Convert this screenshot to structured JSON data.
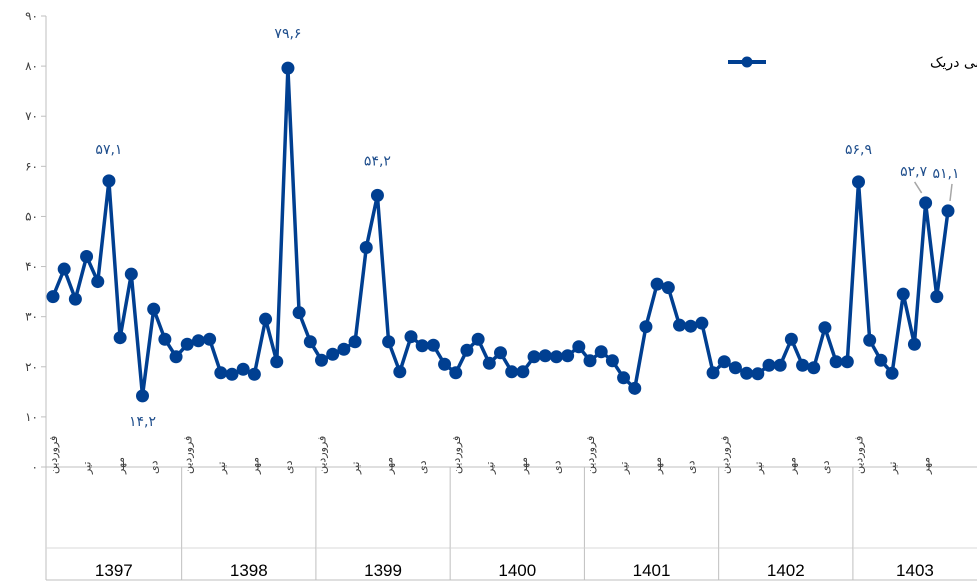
{
  "chart_data": {
    "type": "line",
    "ylim": [
      0,
      90
    ],
    "y_ticks": [
      "۰",
      "۱۰",
      "۲۰",
      "۳۰",
      "۴۰",
      "۵۰",
      "۶۰",
      "۷۰",
      "۸۰",
      "۹۰"
    ],
    "grid": false,
    "legend_position": "top-right",
    "series": [
      {
        "name": "شاخص نااطمینانی دریک",
        "color": "#003f91",
        "values": [
          34,
          39.5,
          33.5,
          42,
          37,
          57.1,
          25.8,
          38.5,
          14.2,
          31.5,
          25.5,
          22,
          24.5,
          25.2,
          25.5,
          18.8,
          18.5,
          19.5,
          18.5,
          29.5,
          21,
          79.6,
          30.8,
          25,
          21.3,
          22.5,
          23.5,
          25,
          43.8,
          54.2,
          25,
          19,
          26,
          24.2,
          24.3,
          20.5,
          18.8,
          23.3,
          25.5,
          20.7,
          22.8,
          19,
          19,
          22,
          22.2,
          22,
          22.2,
          24,
          21.2,
          23,
          21.2,
          17.8,
          15.7,
          28,
          36.5,
          35.8,
          28.3,
          28.1,
          28.7,
          18.8,
          21,
          19.8,
          18.7,
          18.6,
          20.3,
          20.3,
          25.5,
          20.3,
          19.8,
          27.8,
          21,
          21,
          56.9,
          25.3,
          21.3,
          18.7,
          34.5,
          24.5,
          52.7,
          34,
          51.1
        ]
      }
    ],
    "data_labels": [
      {
        "index": 5,
        "text": "۵۷,۱"
      },
      {
        "index": 8,
        "text": "۱۴,۲"
      },
      {
        "index": 21,
        "text": "۷۹,۶"
      },
      {
        "index": 29,
        "text": "۵۴,۲"
      },
      {
        "index": 72,
        "text": "۵۶,۹"
      },
      {
        "index": 78,
        "text": "۵۲,۷"
      },
      {
        "index": 80,
        "text": "۵۱,۱"
      }
    ],
    "years": [
      "1397",
      "1398",
      "1399",
      "1400",
      "1401",
      "1402",
      "1403"
    ],
    "year_point_counts": [
      12,
      12,
      12,
      12,
      12,
      12,
      9
    ],
    "month_ticks": [
      {
        "index": 0,
        "text": "فروردین"
      },
      {
        "index": 3,
        "text": "تیر"
      },
      {
        "index": 6,
        "text": "مهر"
      },
      {
        "index": 9,
        "text": "دی"
      }
    ]
  }
}
